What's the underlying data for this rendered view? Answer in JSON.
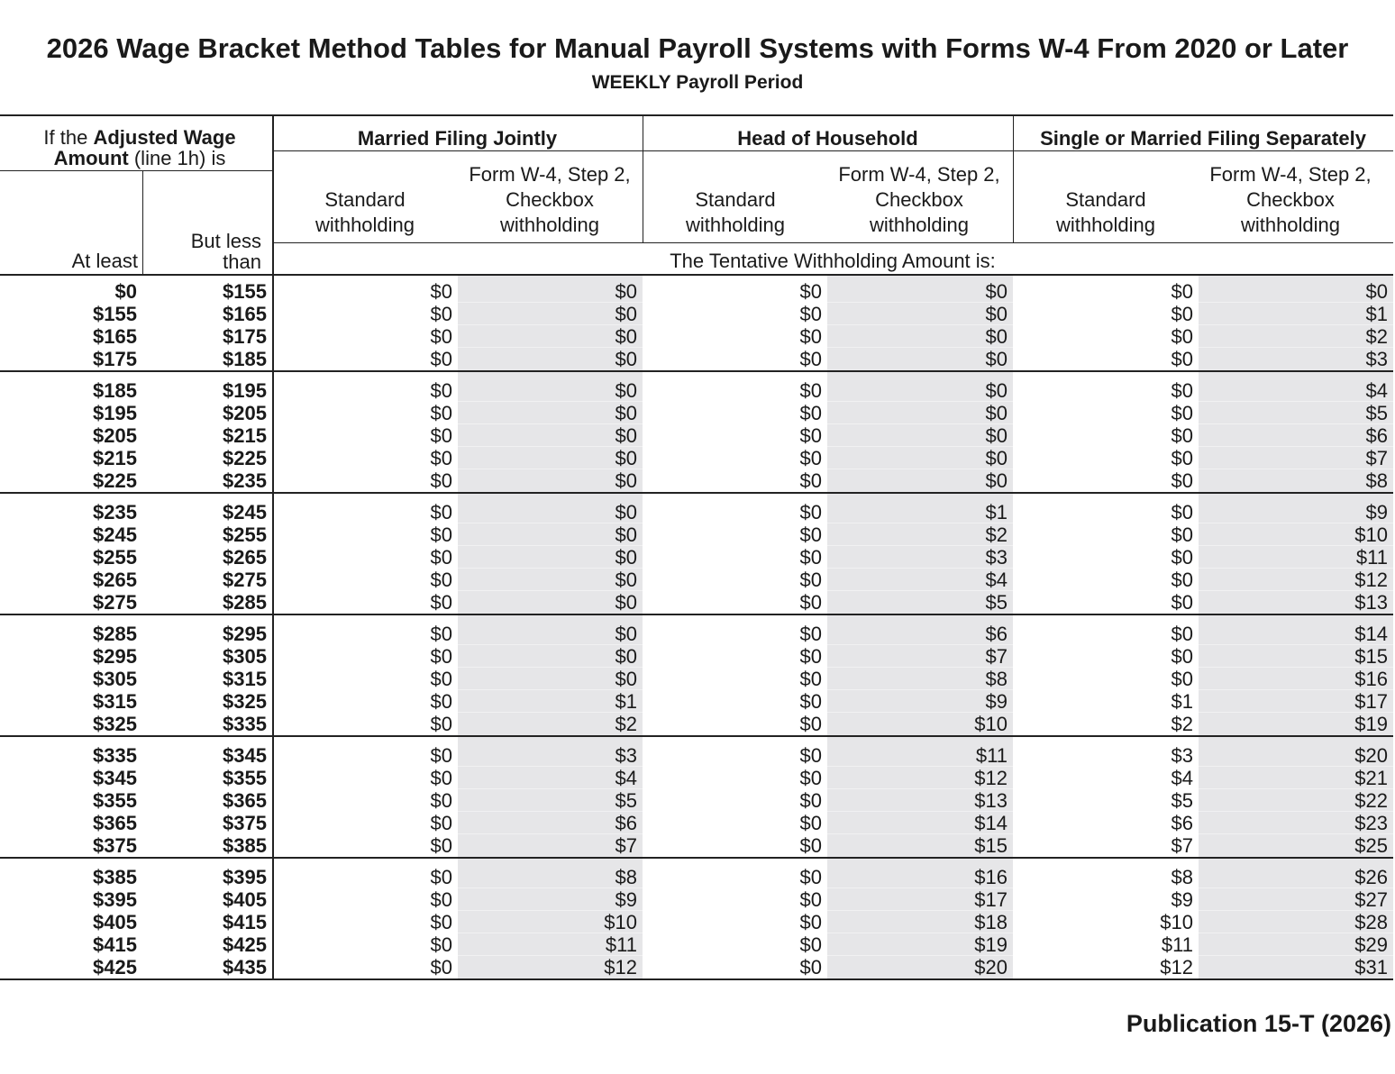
{
  "header": {
    "title": "2026 Wage Bracket Method Tables for Manual Payroll Systems with Forms W-4 From 2020 or Later",
    "subtitle": "WEEKLY Payroll Period"
  },
  "table": {
    "left_header": {
      "prefix": "If the",
      "bold": "Adjusted Wage Amount",
      "suffix": "(line 1h) is"
    },
    "at_least": "At least",
    "but_less_than": "But less than",
    "groups": [
      {
        "name": "Married Filing Jointly",
        "standard": "Standard withholding",
        "checkbox": "Form W-4, Step 2, Checkbox withholding"
      },
      {
        "name": "Head of Household",
        "standard": "Standard withholding",
        "checkbox": "Form W-4, Step 2, Checkbox withholding"
      },
      {
        "name": "Single or Married Filing Separately",
        "standard": "Standard withholding",
        "checkbox": "Form W-4, Step 2, Checkbox withholding"
      }
    ],
    "sub_caption": "The Tentative Withholding Amount is:",
    "row_groups": [
      [
        [
          "$0",
          "$155",
          "$0",
          "$0",
          "$0",
          "$0",
          "$0",
          "$0"
        ],
        [
          "$155",
          "$165",
          "$0",
          "$0",
          "$0",
          "$0",
          "$0",
          "$1"
        ],
        [
          "$165",
          "$175",
          "$0",
          "$0",
          "$0",
          "$0",
          "$0",
          "$2"
        ],
        [
          "$175",
          "$185",
          "$0",
          "$0",
          "$0",
          "$0",
          "$0",
          "$3"
        ]
      ],
      [
        [
          "$185",
          "$195",
          "$0",
          "$0",
          "$0",
          "$0",
          "$0",
          "$4"
        ],
        [
          "$195",
          "$205",
          "$0",
          "$0",
          "$0",
          "$0",
          "$0",
          "$5"
        ],
        [
          "$205",
          "$215",
          "$0",
          "$0",
          "$0",
          "$0",
          "$0",
          "$6"
        ],
        [
          "$215",
          "$225",
          "$0",
          "$0",
          "$0",
          "$0",
          "$0",
          "$7"
        ],
        [
          "$225",
          "$235",
          "$0",
          "$0",
          "$0",
          "$0",
          "$0",
          "$8"
        ]
      ],
      [
        [
          "$235",
          "$245",
          "$0",
          "$0",
          "$0",
          "$1",
          "$0",
          "$9"
        ],
        [
          "$245",
          "$255",
          "$0",
          "$0",
          "$0",
          "$2",
          "$0",
          "$10"
        ],
        [
          "$255",
          "$265",
          "$0",
          "$0",
          "$0",
          "$3",
          "$0",
          "$11"
        ],
        [
          "$265",
          "$275",
          "$0",
          "$0",
          "$0",
          "$4",
          "$0",
          "$12"
        ],
        [
          "$275",
          "$285",
          "$0",
          "$0",
          "$0",
          "$5",
          "$0",
          "$13"
        ]
      ],
      [
        [
          "$285",
          "$295",
          "$0",
          "$0",
          "$0",
          "$6",
          "$0",
          "$14"
        ],
        [
          "$295",
          "$305",
          "$0",
          "$0",
          "$0",
          "$7",
          "$0",
          "$15"
        ],
        [
          "$305",
          "$315",
          "$0",
          "$0",
          "$0",
          "$8",
          "$0",
          "$16"
        ],
        [
          "$315",
          "$325",
          "$0",
          "$1",
          "$0",
          "$9",
          "$1",
          "$17"
        ],
        [
          "$325",
          "$335",
          "$0",
          "$2",
          "$0",
          "$10",
          "$2",
          "$19"
        ]
      ],
      [
        [
          "$335",
          "$345",
          "$0",
          "$3",
          "$0",
          "$11",
          "$3",
          "$20"
        ],
        [
          "$345",
          "$355",
          "$0",
          "$4",
          "$0",
          "$12",
          "$4",
          "$21"
        ],
        [
          "$355",
          "$365",
          "$0",
          "$5",
          "$0",
          "$13",
          "$5",
          "$22"
        ],
        [
          "$365",
          "$375",
          "$0",
          "$6",
          "$0",
          "$14",
          "$6",
          "$23"
        ],
        [
          "$375",
          "$385",
          "$0",
          "$7",
          "$0",
          "$15",
          "$7",
          "$25"
        ]
      ],
      [
        [
          "$385",
          "$395",
          "$0",
          "$8",
          "$0",
          "$16",
          "$8",
          "$26"
        ],
        [
          "$395",
          "$405",
          "$0",
          "$9",
          "$0",
          "$17",
          "$9",
          "$27"
        ],
        [
          "$405",
          "$415",
          "$0",
          "$10",
          "$0",
          "$18",
          "$10",
          "$28"
        ],
        [
          "$415",
          "$425",
          "$0",
          "$11",
          "$0",
          "$19",
          "$11",
          "$29"
        ],
        [
          "$425",
          "$435",
          "$0",
          "$12",
          "$0",
          "$20",
          "$12",
          "$31"
        ]
      ]
    ]
  },
  "footer": {
    "publication": "Publication 15-T (2026)"
  }
}
